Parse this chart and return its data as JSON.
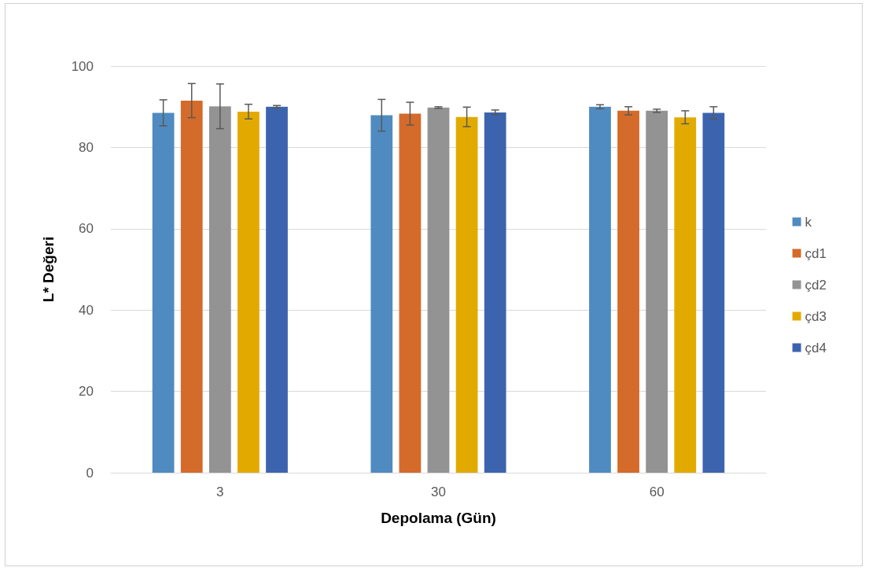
{
  "chart_data": {
    "type": "bar",
    "xlabel": "Depolama (Gün)",
    "ylabel": "L* Değeri",
    "categories": [
      "3",
      "30",
      "60"
    ],
    "series": [
      {
        "name": "k",
        "color": "#4f8bc0",
        "values": [
          88.5,
          87.9,
          90.0
        ],
        "errors": [
          3.2,
          3.9,
          0.5
        ]
      },
      {
        "name": "çd1",
        "color": "#d46b2a",
        "values": [
          91.5,
          88.3,
          89.0
        ],
        "errors": [
          4.2,
          2.8,
          1.0
        ]
      },
      {
        "name": "çd2",
        "color": "#939393",
        "values": [
          90.1,
          89.8,
          89.0
        ],
        "errors": [
          5.5,
          0.2,
          0.4
        ]
      },
      {
        "name": "çd3",
        "color": "#e2aa00",
        "values": [
          88.8,
          87.5,
          87.4
        ],
        "errors": [
          1.8,
          2.4,
          1.6
        ]
      },
      {
        "name": "çd4",
        "color": "#3c64ae",
        "values": [
          90.0,
          88.6,
          88.5
        ],
        "errors": [
          0.3,
          0.6,
          1.5
        ]
      }
    ],
    "ylim": [
      0,
      100
    ],
    "yticks": [
      0,
      20,
      40,
      60,
      80,
      100
    ],
    "grid": "y",
    "legend": "right"
  }
}
